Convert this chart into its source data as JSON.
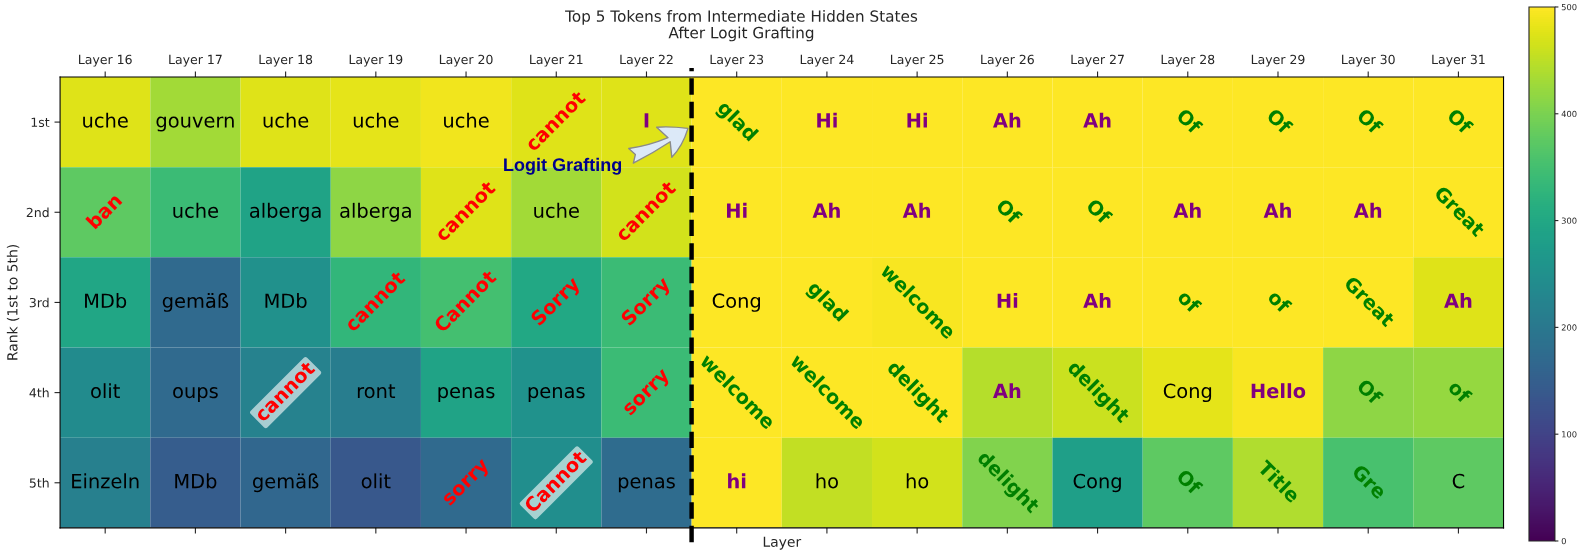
{
  "chart_data": {
    "type": "heatmap",
    "title": "Top 5 Tokens from Intermediate Hidden States\nAfter Logit Grafting",
    "xlabel": "Layer",
    "ylabel": "Rank (1st to 5th)",
    "categories": [
      "Layer 16",
      "Layer 17",
      "Layer 18",
      "Layer 19",
      "Layer 20",
      "Layer 21",
      "Layer 22",
      "Layer 23",
      "Layer 24",
      "Layer 25",
      "Layer 26",
      "Layer 27",
      "Layer 28",
      "Layer 29",
      "Layer 30",
      "Layer 31"
    ],
    "y_categories": [
      "1st",
      "2nd",
      "3rd",
      "4th",
      "5th"
    ],
    "cells": [
      [
        475,
        430,
        475,
        480,
        490,
        475,
        475,
        500,
        500,
        500,
        500,
        500,
        500,
        500,
        500,
        500
      ],
      [
        375,
        340,
        290,
        415,
        475,
        430,
        465,
        500,
        500,
        500,
        500,
        500,
        500,
        500,
        500,
        500
      ],
      [
        295,
        170,
        250,
        330,
        350,
        300,
        340,
        500,
        500,
        495,
        500,
        500,
        500,
        500,
        500,
        475
      ],
      [
        240,
        170,
        220,
        210,
        290,
        255,
        340,
        500,
        500,
        500,
        445,
        460,
        480,
        495,
        415,
        420
      ],
      [
        215,
        145,
        165,
        135,
        170,
        245,
        175,
        500,
        455,
        465,
        405,
        280,
        375,
        440,
        355,
        375
      ]
    ],
    "cell_labels": [
      [
        "uche",
        "gouvern",
        "uche",
        "uche",
        "uche",
        "cannot",
        "I",
        "glad",
        "Hi",
        "Hi",
        "Ah",
        "Ah",
        "Of",
        "Of",
        "Of",
        "Of"
      ],
      [
        "ban",
        "uche",
        "alberga",
        "alberga",
        "cannot",
        "uche",
        "cannot",
        "Hi",
        "Ah",
        "Ah",
        "Of",
        "Of",
        "Ah",
        "Ah",
        "Ah",
        "Great"
      ],
      [
        "MDb",
        "gemäß",
        "MDb",
        "cannot",
        "Cannot",
        "Sorry",
        "Sorry",
        "Cong",
        "glad",
        "welcome",
        "Hi",
        "Ah",
        "of",
        "of",
        "Great",
        "Ah"
      ],
      [
        "olit",
        "oups",
        "cannot",
        "ront",
        "penas",
        "penas",
        "sorry",
        "welcome",
        "welcome",
        "delight",
        "Ah",
        "delight",
        "Cong",
        "Hello",
        "Of",
        "of"
      ],
      [
        "Einzeln",
        "MDb",
        "gemäß",
        "olit",
        "sorry",
        "Cannot",
        "penas",
        "hi",
        "ho",
        "ho",
        "delight",
        "Cong",
        "Of",
        "Title",
        "Gre",
        "C"
      ]
    ],
    "colors": [
      [
        "#000000",
        "#000000",
        "#000000",
        "#000000",
        "#000000",
        "#ff0000",
        "#800080",
        "#008000",
        "#800080",
        "#800080",
        "#800080",
        "#800080",
        "#008000",
        "#008000",
        "#008000",
        "#008000"
      ],
      [
        "#ff0000",
        "#000000",
        "#000000",
        "#000000",
        "#ff0000",
        "#000000",
        "#ff0000",
        "#800080",
        "#800080",
        "#800080",
        "#008000",
        "#008000",
        "#800080",
        "#800080",
        "#800080",
        "#008000"
      ],
      [
        "#000000",
        "#000000",
        "#000000",
        "#ff0000",
        "#ff0000",
        "#ff0000",
        "#ff0000",
        "#000000",
        "#008000",
        "#008000",
        "#800080",
        "#800080",
        "#008000",
        "#008000",
        "#008000",
        "#800080"
      ],
      [
        "#000000",
        "#000000",
        "#ff0000",
        "#000000",
        "#000000",
        "#000000",
        "#ff0000",
        "#008000",
        "#008000",
        "#008000",
        "#800080",
        "#008000",
        "#000000",
        "#800080",
        "#008000",
        "#008000"
      ],
      [
        "#000000",
        "#000000",
        "#000000",
        "#000000",
        "#ff0000",
        "#ff0000",
        "#000000",
        "#800080",
        "#000000",
        "#000000",
        "#008000",
        "#000000",
        "#008000",
        "#008000",
        "#008000",
        "#000000"
      ]
    ],
    "clim": [
      0,
      500
    ],
    "cticks": [
      0,
      100,
      200,
      300,
      400,
      500
    ],
    "annotations": [
      "Logit Grafting"
    ]
  }
}
